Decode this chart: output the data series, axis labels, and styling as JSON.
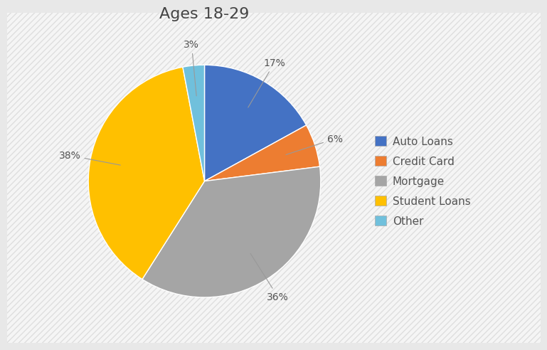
{
  "title": "Ages 18-29",
  "labels": [
    "Auto Loans",
    "Credit Card",
    "Mortgage",
    "Student Loans",
    "Other"
  ],
  "values": [
    17,
    6,
    36,
    38,
    3
  ],
  "colors": [
    "#4472C4",
    "#ED7D31",
    "#A5A5A5",
    "#FFC000",
    "#70C0DC"
  ],
  "bg_color": "#E8E8E8",
  "hatch_color": "#D0D0D0",
  "pct_labels": [
    "17%",
    "6%",
    "36%",
    "38%",
    "3%"
  ],
  "legend_labels": [
    "Auto Loans",
    "Credit Card",
    "Mortgage",
    "Student Loans",
    "Other"
  ],
  "startangle": 90,
  "title_fontsize": 16,
  "label_fontsize": 10,
  "legend_fontsize": 11
}
